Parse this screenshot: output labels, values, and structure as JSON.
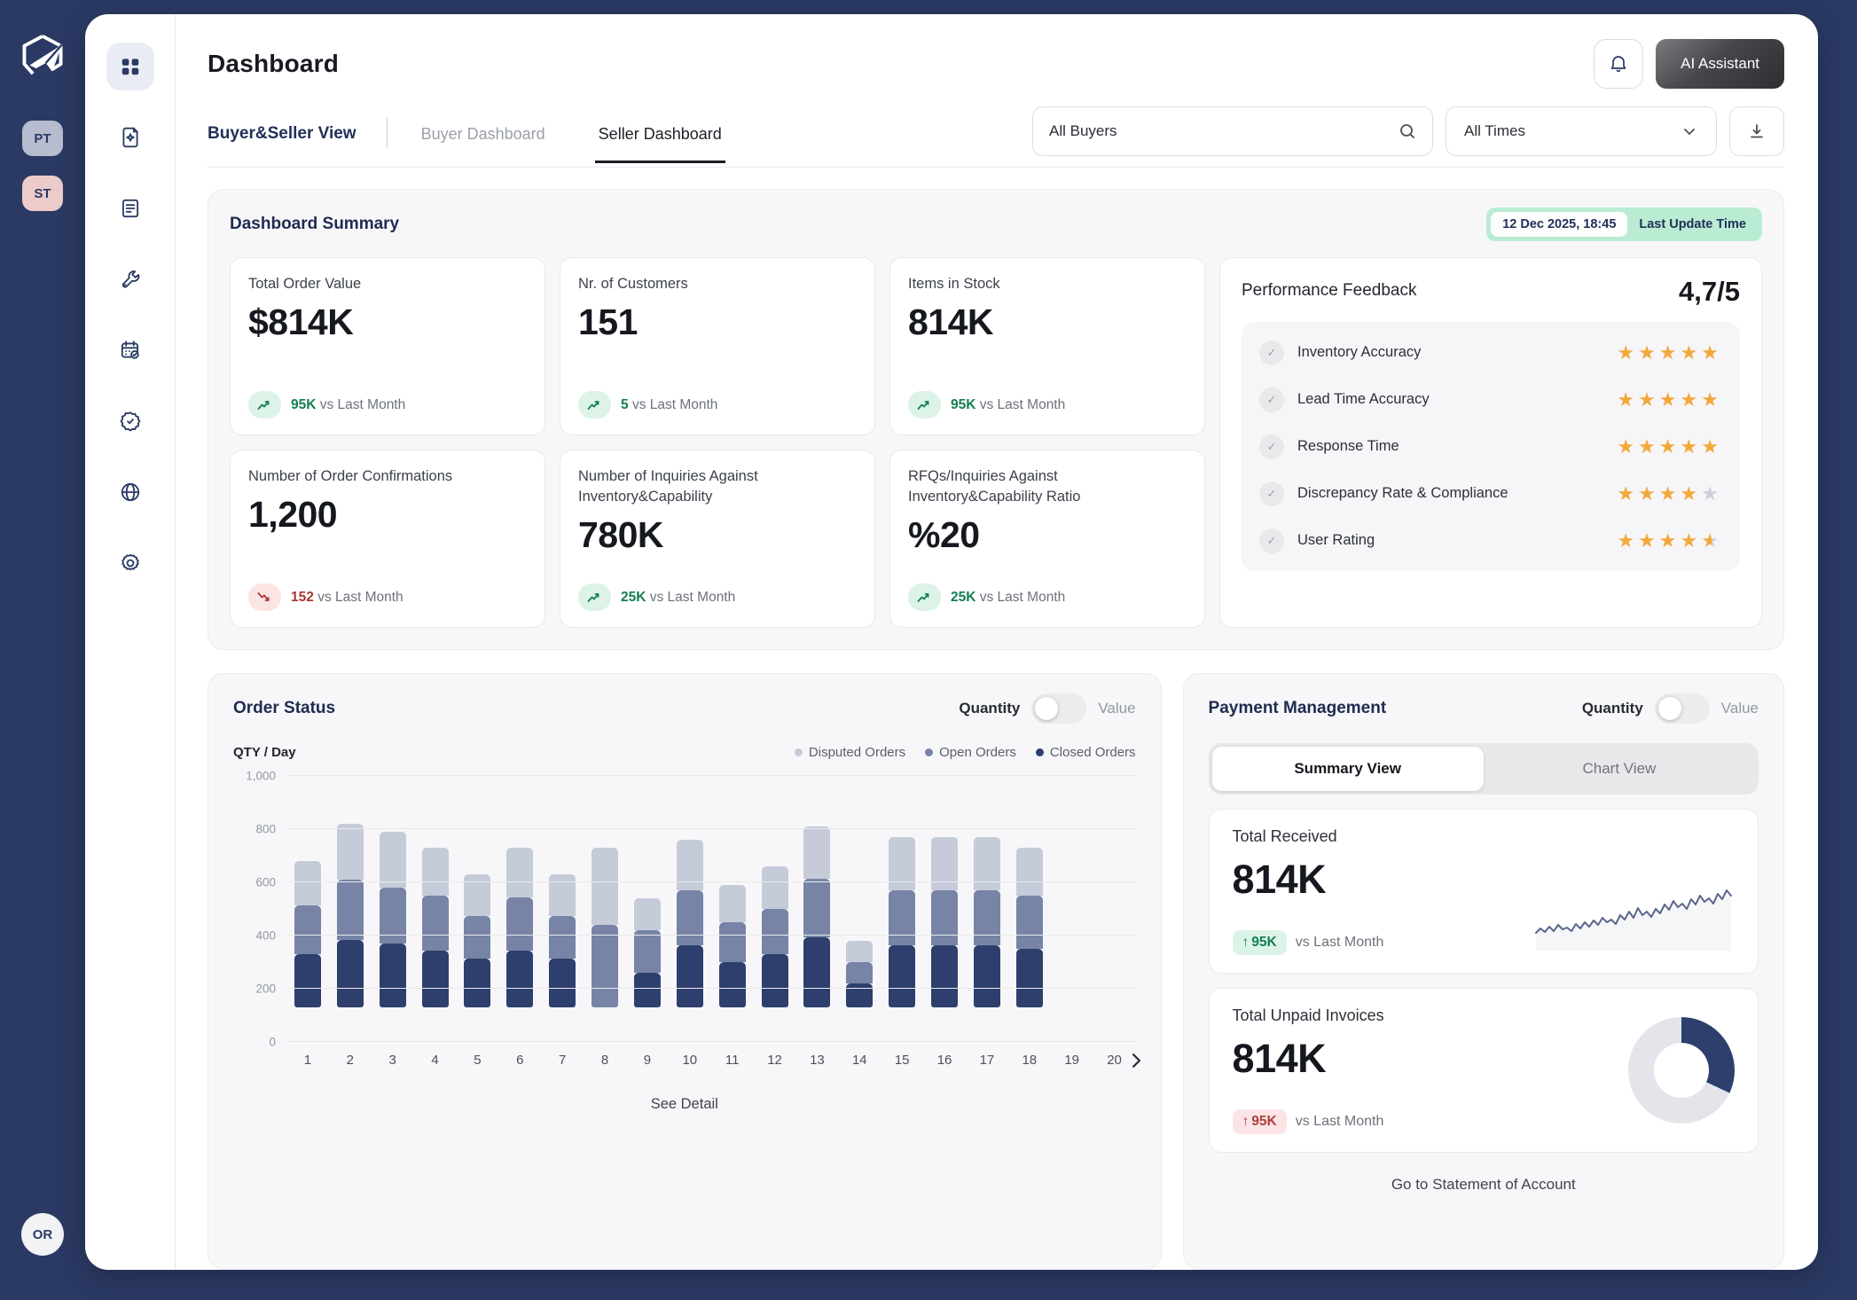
{
  "colors": {
    "navy": "#2b3a64",
    "bar_closed": "#2e3f6e",
    "bar_open": "#7784a6",
    "bar_disputed": "#c5cbd9",
    "green": "#147f52",
    "mint": "#ddf3e8",
    "red": "#ab3734",
    "pink": "#fbe4e6",
    "gold": "#f2a93c",
    "star_empty": "#ccd0d8",
    "donut_rest": "#e3e5ea",
    "spark": "#5a668c"
  },
  "sidebar": {
    "avatars": [
      {
        "label": "PT"
      },
      {
        "label": "ST"
      }
    ],
    "bottom_avatar": {
      "label": "OR"
    },
    "rail_items": [
      "dashboard",
      "file-sparkle",
      "notes",
      "wrench",
      "calendar-check",
      "badge-check",
      "globe",
      "settings"
    ]
  },
  "header": {
    "title": "Dashboard",
    "ai_button": "AI Assistant"
  },
  "tabs": {
    "view_label": "Buyer&Seller View",
    "items": [
      {
        "label": "Buyer Dashboard",
        "active": false
      },
      {
        "label": "Seller Dashboard",
        "active": true
      }
    ]
  },
  "filters": {
    "search_value": "All Buyers",
    "time_value": "All Times"
  },
  "summary": {
    "title": "Dashboard Summary",
    "last_update": {
      "date": "12 Dec 2025, 18:45",
      "label": "Last Update Time"
    },
    "cards": [
      {
        "title": "Total Order Value",
        "value": "$814K",
        "delta": "95K",
        "suffix": "vs Last Month",
        "trend": "up"
      },
      {
        "title": "Nr. of Customers",
        "value": "151",
        "delta": "5",
        "suffix": "vs Last Month",
        "trend": "up"
      },
      {
        "title": "Items in Stock",
        "value": "814K",
        "delta": "95K",
        "suffix": "vs Last Month",
        "trend": "up"
      },
      {
        "title": "Number of Order Confirmations",
        "value": "1,200",
        "delta": "152",
        "suffix": "vs Last Month",
        "trend": "down"
      },
      {
        "title": "Number of Inquiries Against Inventory&Capability",
        "value": "780K",
        "delta": "25K",
        "suffix": "vs Last Month",
        "trend": "up"
      },
      {
        "title": "RFQs/Inquiries Against Inventory&Capability Ratio",
        "value": "%20",
        "delta": "25K",
        "suffix": "vs Last Month",
        "trend": "up"
      }
    ],
    "performance": {
      "title": "Performance Feedback",
      "score": "4,7/5",
      "items": [
        {
          "label": "Inventory Accuracy",
          "stars": 5
        },
        {
          "label": "Lead Time Accuracy",
          "stars": 5
        },
        {
          "label": "Response Time",
          "stars": 5
        },
        {
          "label": "Discrepancy Rate & Compliance",
          "stars": 4
        },
        {
          "label": "User Rating",
          "stars": 4.5
        }
      ]
    }
  },
  "order_status": {
    "title": "Order Status",
    "toggle": {
      "left": "Quantity",
      "right": "Value"
    },
    "axis_label": "QTY / Day",
    "legend": [
      {
        "label": "Disputed Orders",
        "color": "#c5cbd9"
      },
      {
        "label": "Open Orders",
        "color": "#7784a6"
      },
      {
        "label": "Closed Orders",
        "color": "#2e3f6e"
      }
    ],
    "see_detail": "See Detail"
  },
  "payment": {
    "title": "Payment Management",
    "toggle": {
      "left": "Quantity",
      "right": "Value"
    },
    "tabs": [
      {
        "label": "Summary View",
        "active": true
      },
      {
        "label": "Chart View",
        "active": false
      }
    ],
    "cards": [
      {
        "title": "Total Received",
        "value": "814K",
        "arrow": "↑",
        "delta": "95K",
        "suffix": "vs Last Month",
        "tone": "green"
      },
      {
        "title": "Total Unpaid Invoices",
        "value": "814K",
        "arrow": "↑",
        "delta": "95K",
        "suffix": "vs Last Month",
        "tone": "red"
      }
    ],
    "footer_link": "Go to Statement of Account"
  },
  "chart_data": [
    {
      "type": "bar",
      "name": "order-status-stacked-bars",
      "title": "Order Status",
      "stacked": true,
      "grid": true,
      "legend_position": "top-right",
      "ylabel": "QTY / Day",
      "ylim": [
        0,
        1000
      ],
      "yticks": [
        0,
        200,
        400,
        600,
        800,
        1000
      ],
      "x": [
        1,
        2,
        3,
        4,
        5,
        6,
        7,
        8,
        9,
        10,
        11,
        12,
        13,
        14,
        15,
        16,
        17,
        18,
        19,
        20
      ],
      "baseline_offset": 130,
      "series": [
        {
          "name": "Closed Orders",
          "color": "#2e3f6e",
          "values": [
            200,
            255,
            240,
            215,
            185,
            215,
            185,
            0,
            130,
            235,
            170,
            200,
            265,
            90,
            235,
            235,
            235,
            220,
            0,
            0
          ]
        },
        {
          "name": "Open Orders",
          "color": "#7784a6",
          "values": [
            185,
            225,
            210,
            205,
            160,
            200,
            160,
            310,
            160,
            205,
            150,
            170,
            220,
            80,
            205,
            205,
            205,
            200,
            0,
            0
          ]
        },
        {
          "name": "Disputed Orders",
          "color": "#c5cbd9",
          "values": [
            165,
            210,
            210,
            180,
            155,
            185,
            155,
            290,
            120,
            190,
            140,
            160,
            195,
            80,
            200,
            200,
            200,
            180,
            0,
            0
          ]
        }
      ]
    },
    {
      "type": "line",
      "name": "total-received-sparkline",
      "color": "#5a668c",
      "points_y": [
        62,
        57,
        61,
        55,
        60,
        53,
        58,
        56,
        60,
        52,
        57,
        50,
        55,
        48,
        53,
        45,
        50,
        47,
        52,
        42,
        47,
        38,
        45,
        34,
        42,
        38,
        44,
        35,
        40,
        30,
        36,
        26,
        33,
        29,
        35,
        24,
        30,
        20,
        27,
        23,
        29,
        18,
        24,
        14,
        20
      ]
    },
    {
      "type": "pie",
      "name": "total-unpaid-donut",
      "donut": true,
      "values": [
        {
          "label": "highlighted share",
          "value": 32,
          "color": "#2e3f6e"
        },
        {
          "label": "remainder",
          "value": 68,
          "color": "#e3e5ea"
        }
      ]
    }
  ]
}
